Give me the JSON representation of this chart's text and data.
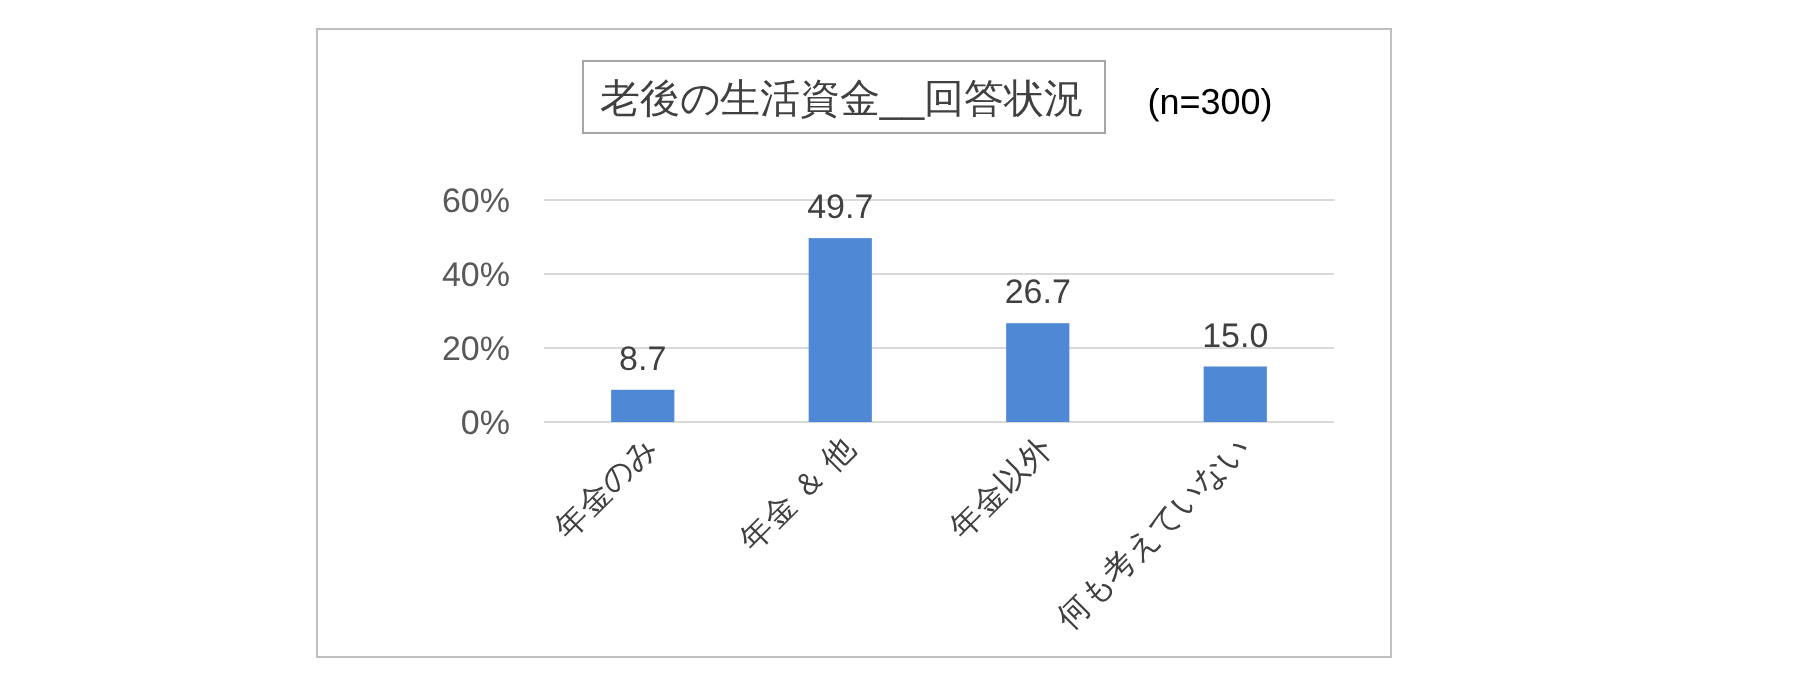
{
  "chart_data": {
    "type": "bar",
    "title": "老後の生活資金__回答状況",
    "subtitle": "(n=300)",
    "categories": [
      "年金のみ",
      "年金 ＆ 他",
      "年金以外",
      "何も考えていない"
    ],
    "values": [
      8.7,
      49.7,
      26.7,
      15.0
    ],
    "value_labels": [
      "8.7",
      "49.7",
      "26.7",
      "15.0"
    ],
    "color": "#4f88d4",
    "ylim": [
      0,
      60
    ],
    "yticks": [
      {
        "value": 0,
        "label": "0%"
      },
      {
        "value": 20,
        "label": "20%"
      },
      {
        "value": 40,
        "label": "40%"
      },
      {
        "value": 60,
        "label": "60%"
      }
    ],
    "grid": "y"
  }
}
